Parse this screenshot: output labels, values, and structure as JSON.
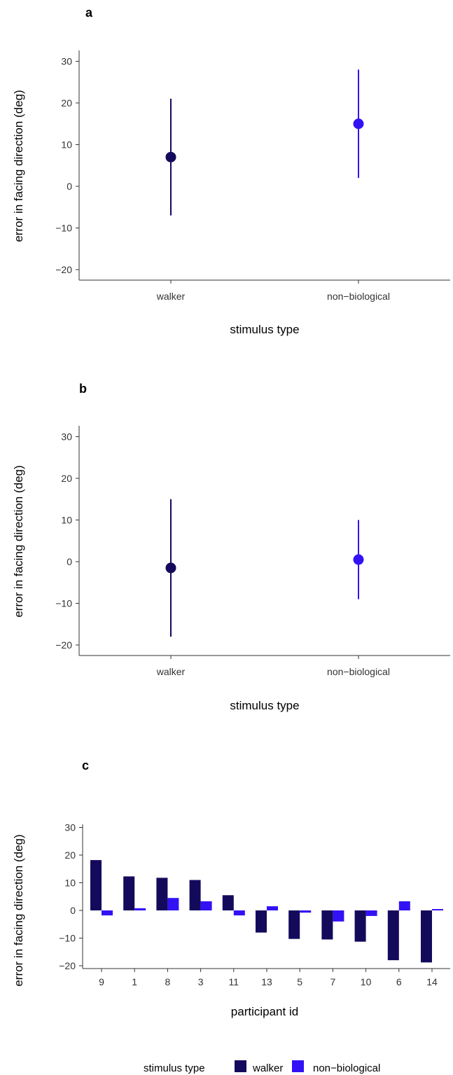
{
  "colors": {
    "walker": "#140a5c",
    "non_biological": "#3212f5"
  },
  "chart_data": [
    {
      "panel": "a",
      "type": "scatter",
      "xlabel": "stimulus type",
      "ylabel": "error in facing direction (deg)",
      "ylim": [
        -23,
        32
      ],
      "yticks": [
        -20,
        -10,
        0,
        10,
        20,
        30
      ],
      "categories": [
        "walker",
        "non−biological"
      ],
      "points": [
        {
          "category": "walker",
          "y": 7,
          "low": -7,
          "high": 21,
          "color": "#140a5c"
        },
        {
          "category": "non−biological",
          "y": 15,
          "low": 2,
          "high": 28,
          "color": "#3212f5"
        }
      ]
    },
    {
      "panel": "b",
      "type": "scatter",
      "xlabel": "stimulus type",
      "ylabel": "error in facing direction (deg)",
      "ylim": [
        -23,
        32
      ],
      "yticks": [
        -20,
        -10,
        0,
        10,
        20,
        30
      ],
      "categories": [
        "walker",
        "non−biological"
      ],
      "points": [
        {
          "category": "walker",
          "y": -1.5,
          "low": -18,
          "high": 15,
          "color": "#140a5c"
        },
        {
          "category": "non−biological",
          "y": 0.5,
          "low": -9,
          "high": 10,
          "color": "#3212f5"
        }
      ]
    },
    {
      "panel": "c",
      "type": "bar",
      "xlabel": "participant id",
      "ylabel": "error in facing direction (deg)",
      "ylim": [
        -22,
        32
      ],
      "yticks": [
        -20,
        -10,
        0,
        10,
        20,
        30
      ],
      "categories": [
        "9",
        "1",
        "8",
        "3",
        "11",
        "13",
        "5",
        "7",
        "10",
        "6",
        "14"
      ],
      "series": [
        {
          "name": "walker",
          "color": "#140a5c",
          "values": [
            18.2,
            12.3,
            11.8,
            11,
            5.5,
            -8,
            -10.3,
            -10.5,
            -11.3,
            -18,
            -18.8
          ]
        },
        {
          "name": "non−biological",
          "color": "#3212f5",
          "values": [
            -1.8,
            0.8,
            4.5,
            3.3,
            -1.8,
            1.5,
            -0.8,
            -4,
            -2,
            3.3,
            0.5
          ]
        }
      ],
      "legend": {
        "title": "stimulus type",
        "position": "bottom"
      }
    }
  ]
}
